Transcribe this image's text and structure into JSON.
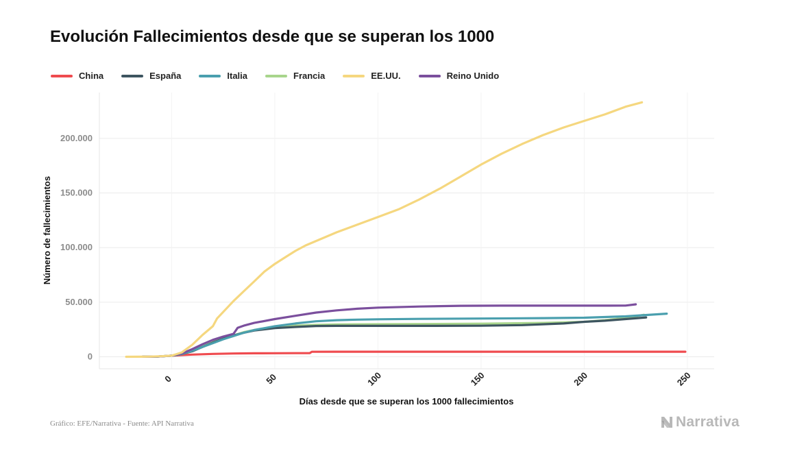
{
  "title": "Evolución Fallecimientos desde que se superan los 1000",
  "source": "Gráfico: EFE/Narrativa - Fuente: API Narrativa",
  "logo": {
    "text": "Narrativa",
    "icon": "narrativa-n-icon"
  },
  "chart_data": {
    "type": "line",
    "title": "Evolución Fallecimientos desde que se superan los 1000",
    "xlabel": "Días desde que se superan los 1000 fallecimientos",
    "ylabel": "Número de fallecimientos",
    "xlim": [
      -35,
      263
    ],
    "ylim": [
      -11000,
      242000
    ],
    "x_ticks": [
      0,
      50,
      100,
      150,
      200,
      250
    ],
    "x_tick_labels": [
      "0",
      "50",
      "100",
      "150",
      "200",
      "250"
    ],
    "y_ticks": [
      0,
      50000,
      100000,
      150000,
      200000
    ],
    "y_tick_labels": [
      "0",
      "50.000",
      "100.000",
      "150.000",
      "200.000"
    ],
    "grid": true,
    "legend_position": "top-left",
    "series": [
      {
        "name": "China",
        "color": "#ef4b4f",
        "x": [
          0,
          10,
          20,
          30,
          40,
          50,
          60,
          67,
          68,
          80,
          100,
          150,
          200,
          249
        ],
        "y": [
          1000,
          2000,
          2600,
          3000,
          3200,
          3250,
          3300,
          3350,
          4600,
          4630,
          4630,
          4640,
          4640,
          4650
        ]
      },
      {
        "name": "España",
        "color": "#3d5560",
        "x": [
          -14,
          -7,
          0,
          5,
          10,
          15,
          20,
          25,
          30,
          35,
          40,
          50,
          60,
          70,
          80,
          100,
          120,
          150,
          170,
          190,
          200,
          210,
          220,
          230
        ],
        "y": [
          20,
          200,
          1000,
          2500,
          5000,
          9000,
          13000,
          16500,
          19500,
          22000,
          24000,
          26300,
          27300,
          28200,
          28300,
          28300,
          28300,
          28400,
          29000,
          30500,
          32000,
          33000,
          34500,
          36000
        ]
      },
      {
        "name": "Italia",
        "color": "#4a9fae",
        "x": [
          -14,
          -7,
          0,
          5,
          10,
          15,
          20,
          25,
          30,
          35,
          40,
          50,
          60,
          70,
          80,
          90,
          100,
          120,
          150,
          180,
          200,
          220,
          240
        ],
        "y": [
          20,
          200,
          1000,
          2500,
          5500,
          9000,
          12500,
          16000,
          19000,
          22000,
          24500,
          28000,
          30500,
          32500,
          33500,
          34000,
          34300,
          34700,
          35000,
          35400,
          35800,
          37000,
          39500
        ]
      },
      {
        "name": "Francia",
        "color": "#a8d58c",
        "x": [
          -14,
          -7,
          0,
          5,
          10,
          15,
          20,
          25,
          30,
          35,
          40,
          50,
          60,
          70,
          80,
          100,
          120,
          150,
          180,
          200,
          210,
          220,
          229
        ],
        "y": [
          20,
          200,
          1000,
          3000,
          6500,
          10500,
          14000,
          17000,
          19500,
          22500,
          24500,
          27000,
          28500,
          29200,
          29600,
          29800,
          30000,
          30300,
          31000,
          32000,
          33500,
          35500,
          38500
        ]
      },
      {
        "name": "EE.UU.",
        "color": "#f5d77f",
        "x": [
          -22,
          -15,
          -10,
          -5,
          0,
          5,
          10,
          15,
          20,
          22,
          25,
          30,
          35,
          40,
          45,
          50,
          55,
          60,
          65,
          70,
          80,
          90,
          100,
          110,
          120,
          130,
          140,
          150,
          160,
          170,
          180,
          190,
          200,
          210,
          220,
          228
        ],
        "y": [
          0,
          50,
          150,
          500,
          1000,
          4000,
          11000,
          20000,
          28000,
          35000,
          41000,
          51000,
          60000,
          69000,
          78000,
          85000,
          91000,
          97000,
          102000,
          106000,
          114000,
          121000,
          128000,
          135000,
          144000,
          154000,
          165000,
          176000,
          186000,
          195000,
          203000,
          210000,
          216000,
          222000,
          229000,
          233000
        ]
      },
      {
        "name": "Reino Unido",
        "color": "#7b4f9d",
        "x": [
          -14,
          -7,
          0,
          5,
          10,
          15,
          20,
          25,
          30,
          32,
          35,
          40,
          50,
          60,
          70,
          80,
          90,
          100,
          120,
          140,
          160,
          180,
          200,
          220,
          225
        ],
        "y": [
          20,
          200,
          1000,
          3000,
          7000,
          11500,
          15500,
          18500,
          21000,
          26500,
          28500,
          31000,
          34500,
          37500,
          40500,
          42500,
          44000,
          45000,
          46000,
          46700,
          46800,
          46800,
          46800,
          46900,
          48000
        ]
      }
    ]
  }
}
